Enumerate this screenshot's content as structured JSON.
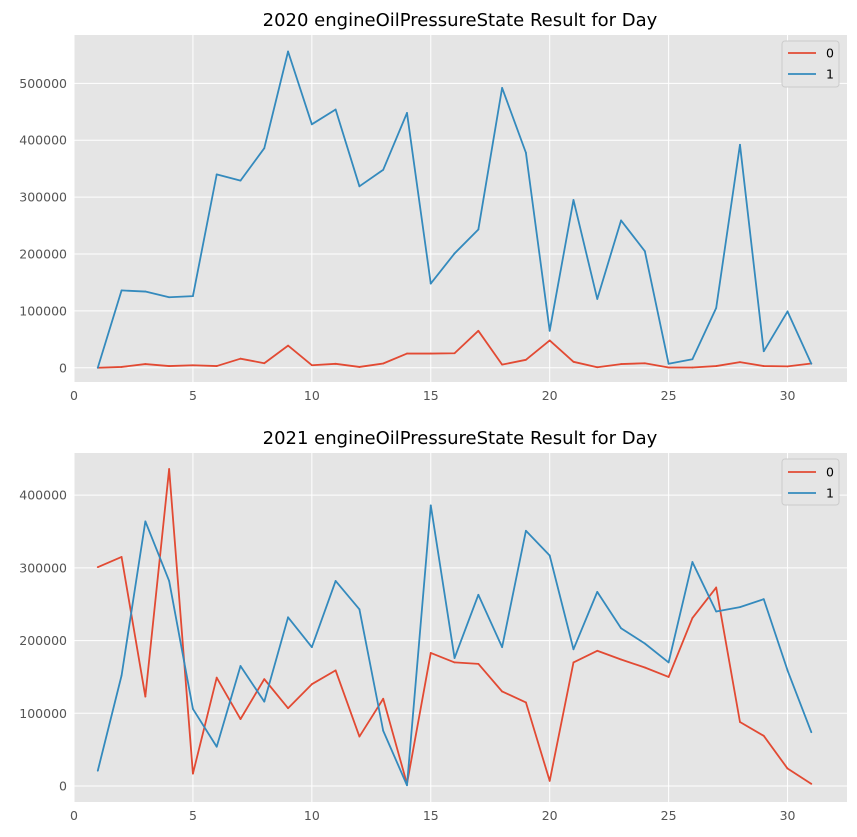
{
  "chart_data": [
    {
      "type": "line",
      "title": "2020 engineOilPressureState Result for Day",
      "xlabel": "",
      "ylabel": "",
      "xlim": [
        0,
        32.5
      ],
      "ylim": [
        -25000,
        585000
      ],
      "xticks": [
        0,
        5,
        10,
        15,
        20,
        25,
        30
      ],
      "yticks": [
        0,
        100000,
        200000,
        300000,
        400000,
        500000
      ],
      "grid": true,
      "legend": "top-right",
      "x": [
        1,
        2,
        3,
        4,
        5,
        6,
        7,
        8,
        9,
        10,
        11,
        12,
        13,
        14,
        15,
        16,
        17,
        18,
        19,
        20,
        21,
        22,
        23,
        24,
        25,
        26,
        27,
        28,
        29,
        30,
        31
      ],
      "series": [
        {
          "name": "0",
          "color": "#E24A33",
          "values": [
            0,
            1500,
            6500,
            3000,
            4500,
            3000,
            16000,
            8000,
            39000,
            4500,
            7000,
            1500,
            7500,
            25000,
            25000,
            25500,
            65000,
            5500,
            14000,
            48000,
            10500,
            1000,
            6500,
            8000,
            500,
            500,
            3000,
            10000,
            3000,
            2500,
            7500
          ]
        },
        {
          "name": "1",
          "color": "#348ABD",
          "values": [
            0,
            136000,
            134000,
            124000,
            126000,
            340000,
            329000,
            386000,
            556000,
            428000,
            454000,
            319000,
            348000,
            448000,
            148000,
            201000,
            243000,
            492000,
            378000,
            65000,
            295000,
            121000,
            259000,
            205000,
            7000,
            15000,
            105000,
            392000,
            29000,
            99000,
            7000
          ]
        }
      ]
    },
    {
      "type": "line",
      "title": "2021 engineOilPressureState Result for Day",
      "xlabel": "",
      "ylabel": "",
      "xlim": [
        0,
        32.5
      ],
      "ylim": [
        -22000,
        458000
      ],
      "xticks": [
        0,
        5,
        10,
        15,
        20,
        25,
        30
      ],
      "yticks": [
        0,
        100000,
        200000,
        300000,
        400000
      ],
      "grid": true,
      "legend": "top-right",
      "x": [
        1,
        2,
        3,
        4,
        5,
        6,
        7,
        8,
        9,
        10,
        11,
        12,
        13,
        14,
        15,
        16,
        17,
        18,
        19,
        20,
        21,
        22,
        23,
        24,
        25,
        26,
        27,
        28,
        29,
        30,
        31
      ],
      "series": [
        {
          "name": "0",
          "color": "#E24A33",
          "values": [
            301000,
            315000,
            123000,
            436000,
            17000,
            149000,
            92000,
            147000,
            107000,
            140000,
            159000,
            68000,
            120000,
            3000,
            183000,
            170000,
            168000,
            130000,
            115000,
            7000,
            170000,
            186000,
            174000,
            163000,
            150000,
            231000,
            273000,
            88000,
            69000,
            24000,
            3000
          ]
        },
        {
          "name": "1",
          "color": "#348ABD",
          "values": [
            21000,
            152000,
            364000,
            282000,
            106000,
            54000,
            165000,
            116000,
            232000,
            191000,
            282000,
            243000,
            76000,
            1000,
            386000,
            176000,
            263000,
            191000,
            351000,
            317000,
            188000,
            267000,
            217000,
            196000,
            170000,
            308000,
            240000,
            246000,
            257000,
            159000,
            74000
          ]
        }
      ]
    }
  ]
}
